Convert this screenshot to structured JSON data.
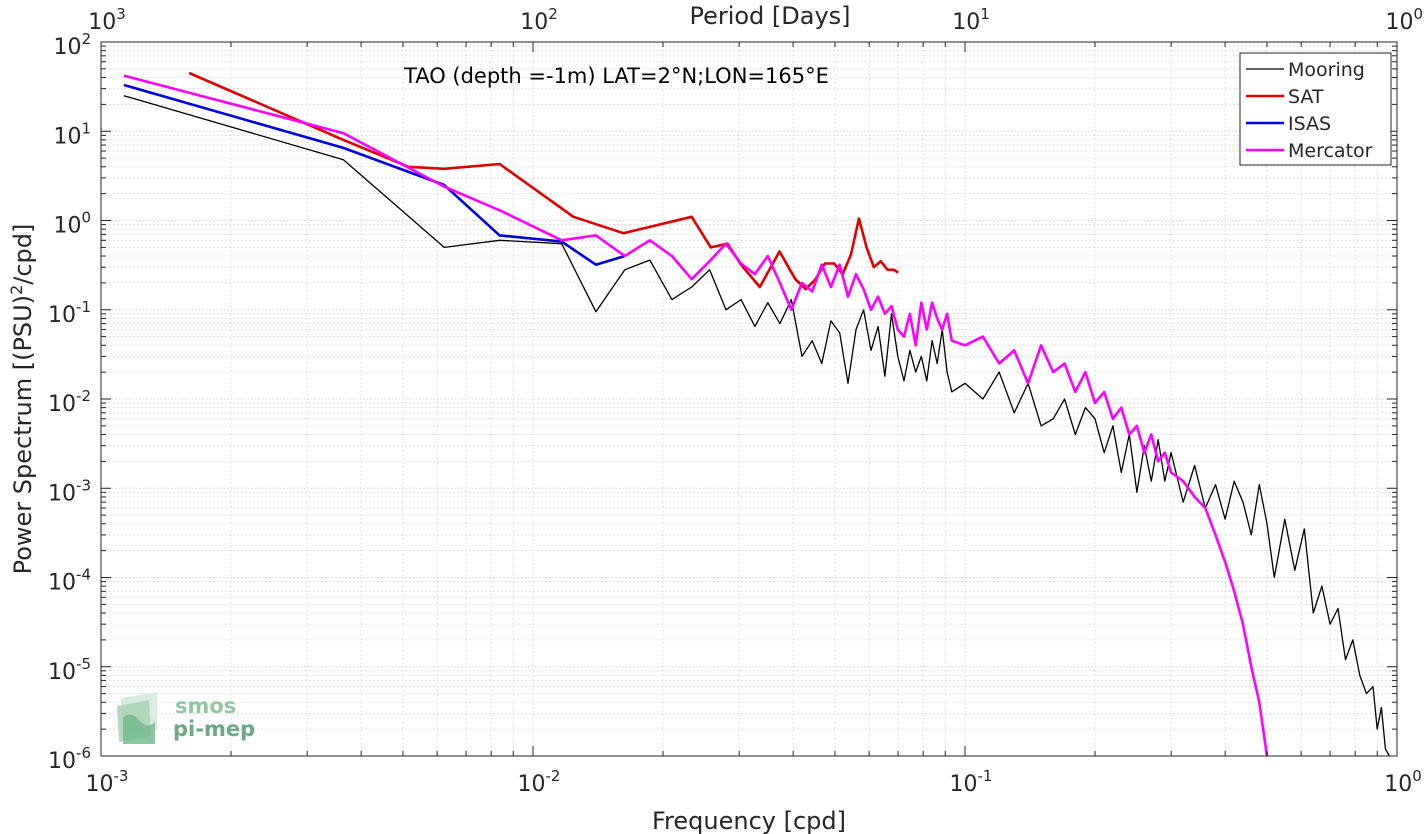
{
  "chart_data": {
    "type": "line",
    "title": "TAO (depth =-1m) LAT=2°N;LON=165°E",
    "xlabel": "Frequency [cpd]",
    "ylabel_main": "Power Spectrum [(PSU)",
    "ylabel_sup": "2",
    "ylabel_tail": "/cpd]",
    "top_xlabel": "Period [Days]",
    "x_scale": "log",
    "y_scale": "log",
    "xlim": [
      0.001,
      1
    ],
    "ylim": [
      1e-06,
      100
    ],
    "grid": true,
    "legend_position": "top-right",
    "x_ticks": [
      {
        "value": 0.001,
        "base": "10",
        "exp": "-3"
      },
      {
        "value": 0.01,
        "base": "10",
        "exp": "-2"
      },
      {
        "value": 0.1,
        "base": "10",
        "exp": "-1"
      },
      {
        "value": 1,
        "base": "10",
        "exp": "0"
      }
    ],
    "y_ticks": [
      {
        "value": 1e-06,
        "base": "10",
        "exp": "-6"
      },
      {
        "value": 1e-05,
        "base": "10",
        "exp": "-5"
      },
      {
        "value": 0.0001,
        "base": "10",
        "exp": "-4"
      },
      {
        "value": 0.001,
        "base": "10",
        "exp": "-3"
      },
      {
        "value": 0.01,
        "base": "10",
        "exp": "-2"
      },
      {
        "value": 0.1,
        "base": "10",
        "exp": "-1"
      },
      {
        "value": 1,
        "base": "10",
        "exp": "0"
      },
      {
        "value": 10,
        "base": "10",
        "exp": "1"
      },
      {
        "value": 100,
        "base": "10",
        "exp": "2"
      }
    ],
    "top_ticks": [
      {
        "value": 0.001,
        "base": "10",
        "exp": "3"
      },
      {
        "value": 0.01,
        "base": "10",
        "exp": "2"
      },
      {
        "value": 0.1,
        "base": "10",
        "exp": "1"
      },
      {
        "value": 1,
        "base": "10",
        "exp": "0"
      }
    ],
    "series": [
      {
        "name": "Mooring",
        "color": "#000000",
        "width": 1.3,
        "x": [
          0.00113,
          0.00364,
          0.00623,
          0.00837,
          0.01165,
          0.01398,
          0.01631,
          0.01864,
          0.02097,
          0.0233,
          0.02563,
          0.02797,
          0.0303,
          0.03263,
          0.03496,
          0.03729,
          0.03962,
          0.04195,
          0.04428,
          0.04661,
          0.04894,
          0.05127,
          0.0536,
          0.05593,
          0.05826,
          0.06059,
          0.06292,
          0.06525,
          0.06758,
          0.06991,
          0.07224,
          0.07457,
          0.0769,
          0.07923,
          0.08156,
          0.0839,
          0.08623,
          0.08856,
          0.09089,
          0.09322,
          0.1,
          0.11,
          0.12,
          0.13,
          0.14,
          0.15,
          0.16,
          0.17,
          0.18,
          0.19,
          0.2,
          0.21,
          0.22,
          0.23,
          0.24,
          0.25,
          0.26,
          0.27,
          0.28,
          0.29,
          0.3,
          0.32,
          0.34,
          0.36,
          0.38,
          0.4,
          0.42,
          0.44,
          0.46,
          0.48,
          0.5,
          0.52,
          0.55,
          0.58,
          0.61,
          0.64,
          0.67,
          0.7,
          0.73,
          0.76,
          0.79,
          0.82,
          0.85,
          0.88,
          0.9,
          0.92,
          0.94,
          0.96
        ],
        "y": [
          25,
          4.8,
          0.5,
          0.6,
          0.55,
          0.095,
          0.28,
          0.36,
          0.13,
          0.18,
          0.28,
          0.1,
          0.13,
          0.065,
          0.12,
          0.07,
          0.13,
          0.03,
          0.045,
          0.025,
          0.075,
          0.055,
          0.015,
          0.06,
          0.1,
          0.035,
          0.065,
          0.018,
          0.09,
          0.03,
          0.016,
          0.035,
          0.02,
          0.03,
          0.016,
          0.045,
          0.025,
          0.06,
          0.02,
          0.012,
          0.015,
          0.01,
          0.02,
          0.007,
          0.015,
          0.005,
          0.006,
          0.01,
          0.004,
          0.008,
          0.006,
          0.0025,
          0.005,
          0.0015,
          0.004,
          0.0009,
          0.003,
          0.0012,
          0.0035,
          0.0012,
          0.0025,
          0.0007,
          0.0018,
          0.0006,
          0.0011,
          0.00045,
          0.0012,
          0.0007,
          0.0003,
          0.0011,
          0.0004,
          0.0001,
          0.00045,
          0.00012,
          0.00035,
          4e-05,
          8e-05,
          3e-05,
          4.5e-05,
          1.2e-05,
          2e-05,
          8e-06,
          5e-06,
          6e-06,
          2e-06,
          3.5e-06,
          1.2e-06,
          1e-06
        ]
      },
      {
        "name": "SAT",
        "color": "#e00000",
        "width": 2.6,
        "x": [
          0.0016,
          0.00364,
          0.00515,
          0.00623,
          0.00837,
          0.0124,
          0.0162,
          0.0233,
          0.0258,
          0.0282,
          0.0303,
          0.0335,
          0.0372,
          0.0405,
          0.0428,
          0.0451,
          0.0474,
          0.0498,
          0.0521,
          0.0545,
          0.0568,
          0.0592,
          0.0615,
          0.0638,
          0.0662,
          0.0685,
          0.07
        ],
        "y": [
          45,
          8,
          4,
          3.8,
          4.3,
          1.1,
          0.72,
          1.1,
          0.5,
          0.55,
          0.32,
          0.18,
          0.45,
          0.22,
          0.17,
          0.22,
          0.33,
          0.33,
          0.25,
          0.42,
          1.05,
          0.5,
          0.3,
          0.35,
          0.28,
          0.28,
          0.26
        ]
      },
      {
        "name": "ISAS",
        "color": "#0000e0",
        "width": 2.6,
        "x": [
          0.00113,
          0.00364,
          0.00515,
          0.00623,
          0.00837,
          0.01165,
          0.01398,
          0.01631
        ],
        "y": [
          33,
          6.5,
          3.5,
          2.5,
          0.68,
          0.58,
          0.32,
          0.4
        ]
      },
      {
        "name": "Mercator",
        "color": "#ff00ff",
        "width": 2.6,
        "x": [
          0.00113,
          0.00364,
          0.00623,
          0.00837,
          0.01165,
          0.01398,
          0.01631,
          0.01864,
          0.02097,
          0.0233,
          0.02563,
          0.02797,
          0.0303,
          0.03263,
          0.03496,
          0.03729,
          0.03962,
          0.04195,
          0.04428,
          0.04661,
          0.04894,
          0.05127,
          0.0536,
          0.05593,
          0.05826,
          0.06059,
          0.06292,
          0.06525,
          0.06758,
          0.06991,
          0.07224,
          0.07457,
          0.0769,
          0.07923,
          0.08156,
          0.0839,
          0.08623,
          0.08856,
          0.09089,
          0.09322,
          0.1,
          0.11,
          0.12,
          0.13,
          0.14,
          0.15,
          0.16,
          0.17,
          0.18,
          0.19,
          0.2,
          0.21,
          0.22,
          0.23,
          0.24,
          0.25,
          0.26,
          0.27,
          0.28,
          0.29,
          0.3,
          0.32,
          0.34,
          0.36,
          0.38,
          0.4,
          0.42,
          0.44,
          0.46,
          0.48,
          0.5
        ],
        "y": [
          42,
          9.5,
          2.4,
          1.3,
          0.6,
          0.68,
          0.4,
          0.6,
          0.4,
          0.22,
          0.35,
          0.55,
          0.33,
          0.25,
          0.4,
          0.2,
          0.1,
          0.2,
          0.16,
          0.32,
          0.18,
          0.32,
          0.14,
          0.25,
          0.17,
          0.1,
          0.14,
          0.09,
          0.11,
          0.06,
          0.05,
          0.09,
          0.04,
          0.12,
          0.06,
          0.12,
          0.08,
          0.06,
          0.09,
          0.045,
          0.04,
          0.05,
          0.025,
          0.035,
          0.015,
          0.04,
          0.02,
          0.025,
          0.012,
          0.02,
          0.009,
          0.012,
          0.006,
          0.008,
          0.004,
          0.005,
          0.0025,
          0.004,
          0.002,
          0.0025,
          0.0015,
          0.0012,
          0.0008,
          0.0006,
          0.0003,
          0.00015,
          7e-05,
          3e-05,
          1e-05,
          4e-06,
          1e-06
        ]
      }
    ]
  },
  "watermark": {
    "line1": "smos",
    "line2": "pi-mep"
  }
}
